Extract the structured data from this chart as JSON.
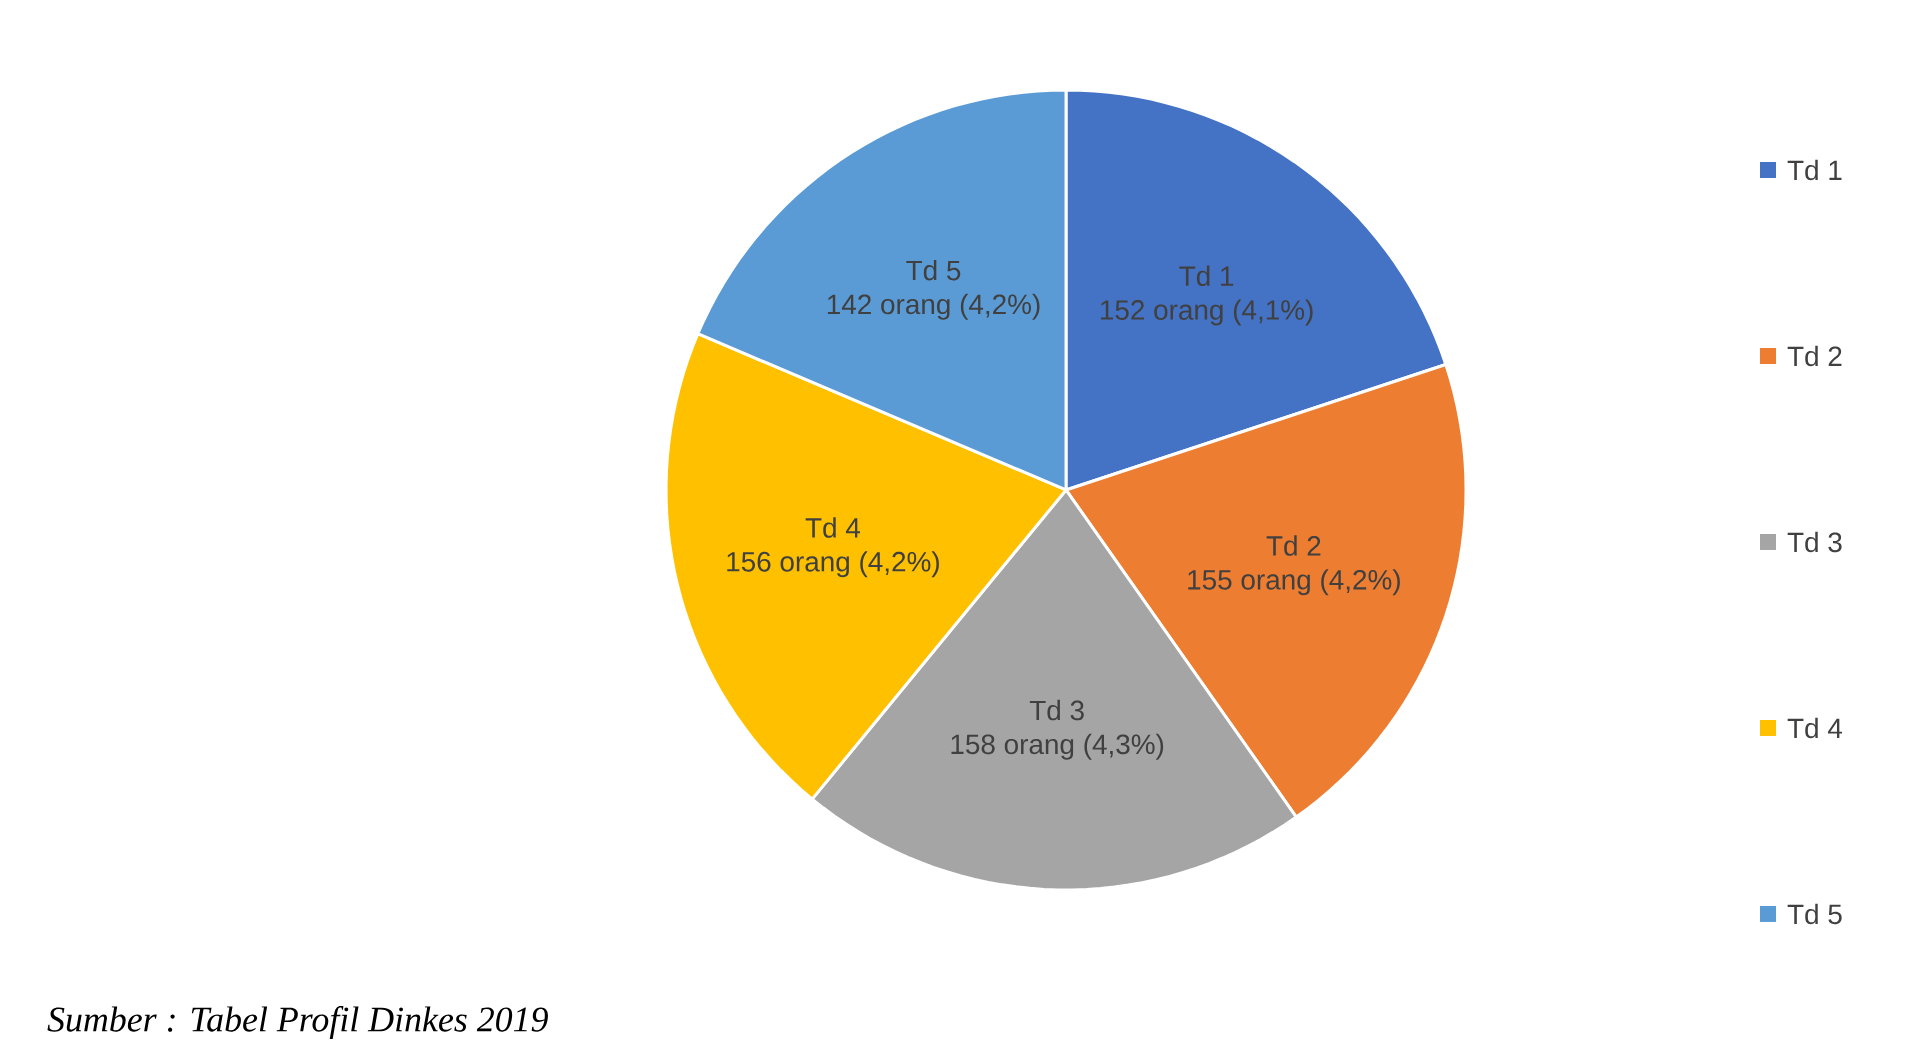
{
  "chart_data": {
    "type": "pie",
    "categories": [
      "Td 1",
      "Td 2",
      "Td 3",
      "Td 4",
      "Td 5"
    ],
    "values": [
      152,
      155,
      158,
      156,
      142
    ],
    "value_labels": [
      "152 orang (4,1%)",
      "155 orang (4,2%)",
      "158 orang (4,3%)",
      "156 orang (4,2%)",
      "142 orang (4,2%)"
    ],
    "colors": [
      "#4472c4",
      "#ed7d31",
      "#a5a5a5",
      "#ffc000",
      "#5b9bd5"
    ],
    "legend": "right",
    "annotations": [
      "*Sumber : Tabel Profil Dinkes 2019*"
    ]
  }
}
